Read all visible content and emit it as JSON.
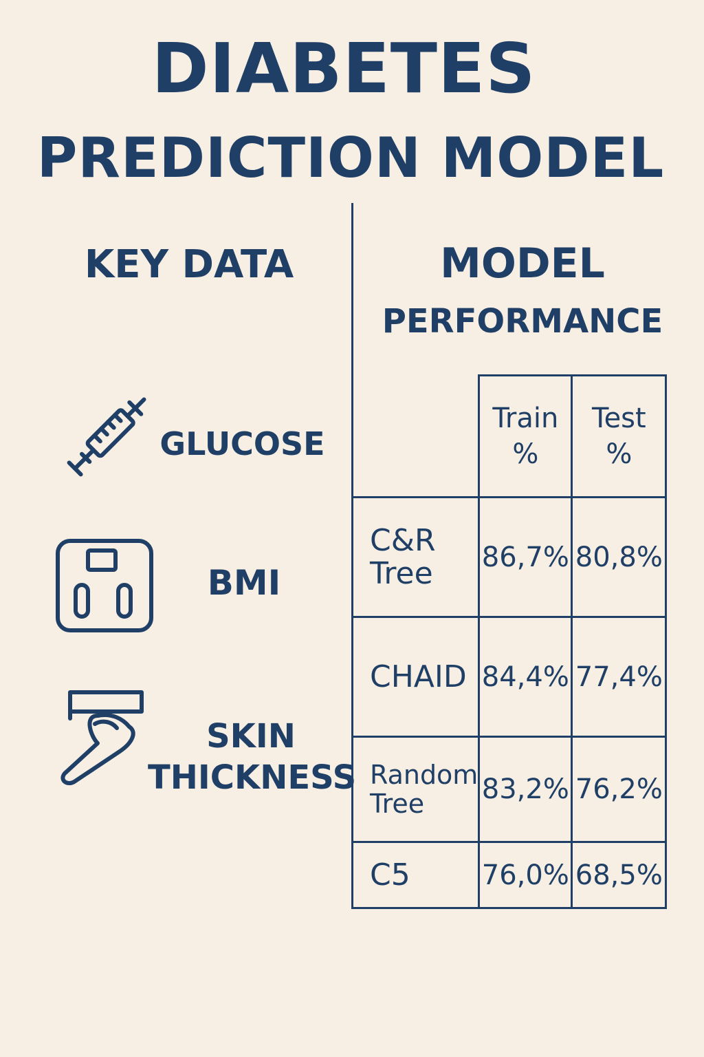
{
  "title": {
    "line1": "DIABETES",
    "line2": "PREDICTION MODEL"
  },
  "key_data": {
    "heading": "KEY DATA",
    "items": [
      {
        "label": "GLUCOSE",
        "icon": "syringe-icon"
      },
      {
        "label": "BMI",
        "icon": "scale-icon"
      },
      {
        "label_line1": "SKIN",
        "label_line2": "THICKNESS",
        "icon": "skin-fold-caliper-icon"
      }
    ]
  },
  "performance": {
    "heading1": "MODEL",
    "heading2": "PERFORMANCE",
    "columns": [
      {
        "line1": "Train",
        "line2": "%"
      },
      {
        "line1": "Test",
        "line2": "%"
      }
    ],
    "rows": [
      {
        "name_line1": "C&R",
        "name_line2": "Tree",
        "train": "86,7%",
        "test": "80,8%"
      },
      {
        "name_line1": "CHAID",
        "name_line2": "",
        "train": "84,4%",
        "test": "77,4%"
      },
      {
        "name_line1": "Random",
        "name_line2": "Tree",
        "train": "83,2%",
        "test": "76,2%"
      },
      {
        "name_line1": "C5",
        "name_line2": "",
        "train": "76,0%",
        "test": "68,5%"
      }
    ]
  },
  "colors": {
    "background": "#f7efe3",
    "ink": "#1f3f66"
  }
}
